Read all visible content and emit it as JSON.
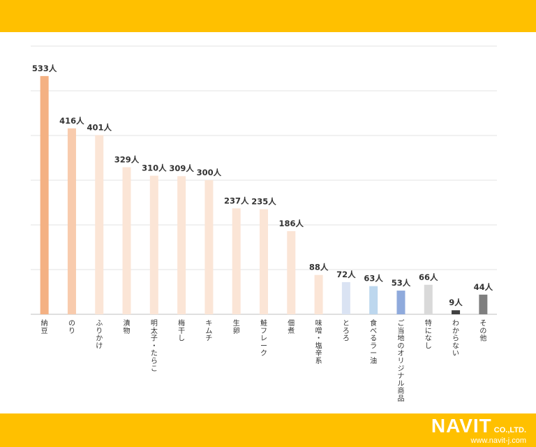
{
  "chart_data": {
    "type": "bar",
    "unit_suffix": "人",
    "categories": [
      "納豆",
      "のり",
      "ふりかけ",
      "漬物",
      "明太子・たらこ",
      "梅干し",
      "キムチ",
      "生卵",
      "鮭フレーク",
      "佃煮",
      "味噌・塩辛系",
      "とろろ",
      "食べるラー油",
      "ご当地のオリジナル商品",
      "特になし",
      "わからない",
      "その他"
    ],
    "values": [
      533,
      416,
      401,
      329,
      310,
      309,
      300,
      237,
      235,
      186,
      88,
      72,
      63,
      53,
      66,
      9,
      44
    ],
    "value_labels": [
      "533人",
      "416人",
      "401人",
      "329人",
      "310人",
      "309人",
      "300人",
      "237人",
      "235人",
      "186人",
      "88人",
      "72人",
      "63人",
      "53人",
      "66人",
      "9人",
      "44人"
    ],
    "bar_colors": [
      "#F4B183",
      "#F8CBAD",
      "#FBE5D6",
      "#FBE5D6",
      "#FBE5D6",
      "#FBE5D6",
      "#FBE5D6",
      "#FBE5D6",
      "#FBE5D6",
      "#FBE5D6",
      "#FBE5D6",
      "#DAE3F3",
      "#BDD7EE",
      "#8FAADC",
      "#D9D9D9",
      "#404040",
      "#7F7F7F"
    ],
    "ylim": [
      0,
      600
    ],
    "gridlines": [
      0,
      100,
      200,
      300,
      400,
      500,
      600
    ],
    "grid": true,
    "title": "",
    "xlabel": "",
    "ylabel": ""
  },
  "brand": {
    "name": "NAVIT",
    "suffix": "CO.,LTD.",
    "url": "www.navit-j.com",
    "band_color": "#FFC000"
  }
}
